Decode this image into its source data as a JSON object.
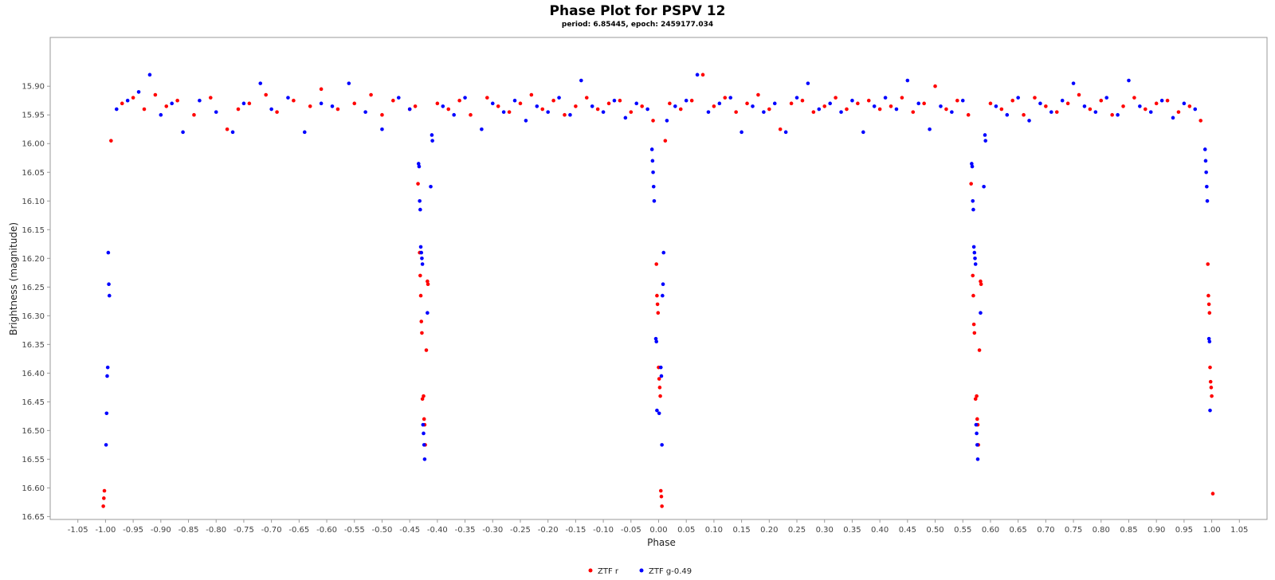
{
  "chart_data": {
    "type": "scatter",
    "title": "Phase Plot for PSPV 12",
    "subtitle": "period: 6.85445, epoch: 2459177.034",
    "xlabel": "Phase",
    "ylabel": "Brightness (magnitude)",
    "xlim": [
      -1.1,
      1.1
    ],
    "ylim": [
      16.655,
      15.815
    ],
    "y_inverted": true,
    "x_ticks": [
      "-1.05",
      "-1.00",
      "-0.95",
      "-0.90",
      "-0.85",
      "-0.80",
      "-0.75",
      "-0.70",
      "-0.65",
      "-0.60",
      "-0.55",
      "-0.50",
      "-0.45",
      "-0.40",
      "-0.35",
      "-0.30",
      "-0.25",
      "-0.20",
      "-0.15",
      "-0.10",
      "-0.05",
      "0.00",
      "0.05",
      "0.10",
      "0.15",
      "0.20",
      "0.25",
      "0.30",
      "0.35",
      "0.40",
      "0.45",
      "0.50",
      "0.55",
      "0.60",
      "0.65",
      "0.70",
      "0.75",
      "0.80",
      "0.85",
      "0.90",
      "0.95",
      "1.00",
      "1.05"
    ],
    "y_ticks": [
      "15.90",
      "15.95",
      "16.00",
      "16.05",
      "16.10",
      "16.15",
      "16.20",
      "16.25",
      "16.30",
      "16.35",
      "16.40",
      "16.45",
      "16.50",
      "16.55",
      "16.60",
      "16.65"
    ],
    "grid": false,
    "legend_position": "bottom-center",
    "series": [
      {
        "name": "ZTF r",
        "color": "#ff0000",
        "points": [
          [
            -1.002,
            16.605
          ],
          [
            -1.003,
            16.618
          ],
          [
            -1.004,
            16.632
          ],
          [
            -0.99,
            15.995
          ],
          [
            -0.97,
            15.93
          ],
          [
            -0.95,
            15.92
          ],
          [
            -0.93,
            15.94
          ],
          [
            -0.91,
            15.915
          ],
          [
            -0.89,
            15.935
          ],
          [
            -0.87,
            15.925
          ],
          [
            -0.84,
            15.95
          ],
          [
            -0.81,
            15.92
          ],
          [
            -0.78,
            15.975
          ],
          [
            -0.76,
            15.94
          ],
          [
            -0.74,
            15.93
          ],
          [
            -0.71,
            15.915
          ],
          [
            -0.69,
            15.945
          ],
          [
            -0.66,
            15.925
          ],
          [
            -0.63,
            15.935
          ],
          [
            -0.61,
            15.905
          ],
          [
            -0.58,
            15.94
          ],
          [
            -0.55,
            15.93
          ],
          [
            -0.52,
            15.915
          ],
          [
            -0.5,
            15.95
          ],
          [
            -0.48,
            15.925
          ],
          [
            -0.45,
            15.94
          ],
          [
            -0.44,
            15.935
          ],
          [
            -0.435,
            16.07
          ],
          [
            -0.432,
            16.19
          ],
          [
            -0.431,
            16.23
          ],
          [
            -0.43,
            16.265
          ],
          [
            -0.429,
            16.31
          ],
          [
            -0.428,
            16.33
          ],
          [
            -0.427,
            16.445
          ],
          [
            -0.425,
            16.44
          ],
          [
            -0.424,
            16.48
          ],
          [
            -0.423,
            16.49
          ],
          [
            -0.422,
            16.525
          ],
          [
            -0.42,
            16.36
          ],
          [
            -0.418,
            16.24
          ],
          [
            -0.417,
            16.245
          ],
          [
            -0.4,
            15.93
          ],
          [
            -0.38,
            15.94
          ],
          [
            -0.36,
            15.925
          ],
          [
            -0.34,
            15.95
          ],
          [
            -0.31,
            15.92
          ],
          [
            -0.29,
            15.935
          ],
          [
            -0.27,
            15.945
          ],
          [
            -0.25,
            15.93
          ],
          [
            -0.23,
            15.915
          ],
          [
            -0.21,
            15.94
          ],
          [
            -0.19,
            15.925
          ],
          [
            -0.17,
            15.95
          ],
          [
            -0.15,
            15.935
          ],
          [
            -0.13,
            15.92
          ],
          [
            -0.11,
            15.94
          ],
          [
            -0.09,
            15.93
          ],
          [
            -0.07,
            15.925
          ],
          [
            -0.05,
            15.945
          ],
          [
            -0.03,
            15.935
          ],
          [
            -0.01,
            15.96
          ],
          [
            -0.004,
            16.21
          ],
          [
            -0.003,
            16.265
          ],
          [
            -0.002,
            16.28
          ],
          [
            -0.001,
            16.295
          ],
          [
            0.0,
            16.39
          ],
          [
            0.001,
            16.41
          ],
          [
            0.002,
            16.425
          ],
          [
            0.003,
            16.44
          ],
          [
            0.004,
            16.605
          ],
          [
            0.005,
            16.615
          ],
          [
            0.006,
            16.632
          ],
          [
            0.012,
            15.995
          ],
          [
            0.02,
            15.93
          ],
          [
            0.04,
            15.94
          ],
          [
            0.06,
            15.925
          ],
          [
            0.08,
            15.88
          ],
          [
            0.1,
            15.935
          ],
          [
            0.12,
            15.92
          ],
          [
            0.14,
            15.945
          ],
          [
            0.16,
            15.93
          ],
          [
            0.18,
            15.915
          ],
          [
            0.2,
            15.94
          ],
          [
            0.22,
            15.975
          ],
          [
            0.24,
            15.93
          ],
          [
            0.26,
            15.925
          ],
          [
            0.28,
            15.945
          ],
          [
            0.3,
            15.935
          ],
          [
            0.32,
            15.92
          ],
          [
            0.34,
            15.94
          ],
          [
            0.36,
            15.93
          ],
          [
            0.38,
            15.925
          ],
          [
            0.4,
            15.94
          ],
          [
            0.42,
            15.935
          ],
          [
            0.44,
            15.92
          ],
          [
            0.46,
            15.945
          ],
          [
            0.48,
            15.93
          ],
          [
            0.5,
            15.9
          ],
          [
            0.52,
            15.94
          ],
          [
            0.54,
            15.925
          ],
          [
            0.56,
            15.95
          ],
          [
            0.565,
            16.07
          ],
          [
            0.568,
            16.23
          ],
          [
            0.569,
            16.265
          ],
          [
            0.57,
            16.315
          ],
          [
            0.571,
            16.33
          ],
          [
            0.573,
            16.445
          ],
          [
            0.575,
            16.44
          ],
          [
            0.576,
            16.48
          ],
          [
            0.577,
            16.49
          ],
          [
            0.578,
            16.525
          ],
          [
            0.58,
            16.36
          ],
          [
            0.582,
            16.24
          ],
          [
            0.583,
            16.245
          ],
          [
            0.6,
            15.93
          ],
          [
            0.62,
            15.94
          ],
          [
            0.64,
            15.925
          ],
          [
            0.66,
            15.95
          ],
          [
            0.68,
            15.92
          ],
          [
            0.7,
            15.935
          ],
          [
            0.72,
            15.945
          ],
          [
            0.74,
            15.93
          ],
          [
            0.76,
            15.915
          ],
          [
            0.78,
            15.94
          ],
          [
            0.8,
            15.925
          ],
          [
            0.82,
            15.95
          ],
          [
            0.84,
            15.935
          ],
          [
            0.86,
            15.92
          ],
          [
            0.88,
            15.94
          ],
          [
            0.9,
            15.93
          ],
          [
            0.92,
            15.925
          ],
          [
            0.94,
            15.945
          ],
          [
            0.96,
            15.935
          ],
          [
            0.98,
            15.96
          ],
          [
            0.993,
            16.21
          ],
          [
            0.994,
            16.265
          ],
          [
            0.995,
            16.28
          ],
          [
            0.996,
            16.295
          ],
          [
            0.997,
            16.39
          ],
          [
            0.998,
            16.415
          ],
          [
            0.999,
            16.425
          ],
          [
            1.0,
            16.44
          ],
          [
            1.002,
            16.61
          ]
        ]
      },
      {
        "name": "ZTF g-0.49",
        "color": "#0000ff",
        "points": [
          [
            -0.995,
            16.19
          ],
          [
            -0.994,
            16.245
          ],
          [
            -0.993,
            16.265
          ],
          [
            -0.996,
            16.39
          ],
          [
            -0.997,
            16.405
          ],
          [
            -0.998,
            16.47
          ],
          [
            -0.999,
            16.525
          ],
          [
            -0.98,
            15.94
          ],
          [
            -0.96,
            15.925
          ],
          [
            -0.94,
            15.91
          ],
          [
            -0.92,
            15.88
          ],
          [
            -0.9,
            15.95
          ],
          [
            -0.88,
            15.93
          ],
          [
            -0.86,
            15.98
          ],
          [
            -0.83,
            15.925
          ],
          [
            -0.8,
            15.945
          ],
          [
            -0.77,
            15.98
          ],
          [
            -0.75,
            15.93
          ],
          [
            -0.72,
            15.895
          ],
          [
            -0.7,
            15.94
          ],
          [
            -0.67,
            15.92
          ],
          [
            -0.64,
            15.98
          ],
          [
            -0.61,
            15.93
          ],
          [
            -0.59,
            15.935
          ],
          [
            -0.56,
            15.895
          ],
          [
            -0.53,
            15.945
          ],
          [
            -0.5,
            15.975
          ],
          [
            -0.47,
            15.92
          ],
          [
            -0.45,
            15.94
          ],
          [
            -0.434,
            16.035
          ],
          [
            -0.433,
            16.04
          ],
          [
            -0.432,
            16.1
          ],
          [
            -0.431,
            16.115
          ],
          [
            -0.43,
            16.18
          ],
          [
            -0.429,
            16.19
          ],
          [
            -0.428,
            16.2
          ],
          [
            -0.427,
            16.21
          ],
          [
            -0.426,
            16.49
          ],
          [
            -0.425,
            16.505
          ],
          [
            -0.424,
            16.525
          ],
          [
            -0.423,
            16.55
          ],
          [
            -0.418,
            16.295
          ],
          [
            -0.412,
            16.075
          ],
          [
            -0.41,
            15.985
          ],
          [
            -0.409,
            15.995
          ],
          [
            -0.39,
            15.935
          ],
          [
            -0.37,
            15.95
          ],
          [
            -0.35,
            15.92
          ],
          [
            -0.32,
            15.975
          ],
          [
            -0.3,
            15.93
          ],
          [
            -0.28,
            15.945
          ],
          [
            -0.26,
            15.925
          ],
          [
            -0.24,
            15.96
          ],
          [
            -0.22,
            15.935
          ],
          [
            -0.2,
            15.945
          ],
          [
            -0.18,
            15.92
          ],
          [
            -0.16,
            15.95
          ],
          [
            -0.14,
            15.89
          ],
          [
            -0.12,
            15.935
          ],
          [
            -0.1,
            15.945
          ],
          [
            -0.08,
            15.925
          ],
          [
            -0.06,
            15.955
          ],
          [
            -0.04,
            15.93
          ],
          [
            -0.02,
            15.94
          ],
          [
            -0.012,
            16.01
          ],
          [
            -0.011,
            16.03
          ],
          [
            -0.01,
            16.05
          ],
          [
            -0.009,
            16.075
          ],
          [
            -0.008,
            16.1
          ],
          [
            -0.005,
            16.34
          ],
          [
            -0.004,
            16.345
          ],
          [
            -0.003,
            16.465
          ],
          [
            0.001,
            16.47
          ],
          [
            0.004,
            16.39
          ],
          [
            0.005,
            16.405
          ],
          [
            0.006,
            16.525
          ],
          [
            0.007,
            16.265
          ],
          [
            0.008,
            16.245
          ],
          [
            0.009,
            16.19
          ],
          [
            0.015,
            15.96
          ],
          [
            0.03,
            15.935
          ],
          [
            0.05,
            15.925
          ],
          [
            0.07,
            15.88
          ],
          [
            0.09,
            15.945
          ],
          [
            0.11,
            15.93
          ],
          [
            0.13,
            15.92
          ],
          [
            0.15,
            15.98
          ],
          [
            0.17,
            15.935
          ],
          [
            0.19,
            15.945
          ],
          [
            0.21,
            15.93
          ],
          [
            0.23,
            15.98
          ],
          [
            0.25,
            15.92
          ],
          [
            0.27,
            15.895
          ],
          [
            0.29,
            15.94
          ],
          [
            0.31,
            15.93
          ],
          [
            0.33,
            15.945
          ],
          [
            0.35,
            15.925
          ],
          [
            0.37,
            15.98
          ],
          [
            0.39,
            15.935
          ],
          [
            0.41,
            15.92
          ],
          [
            0.43,
            15.94
          ],
          [
            0.45,
            15.89
          ],
          [
            0.47,
            15.93
          ],
          [
            0.49,
            15.975
          ],
          [
            0.51,
            15.935
          ],
          [
            0.53,
            15.945
          ],
          [
            0.55,
            15.925
          ],
          [
            0.566,
            16.035
          ],
          [
            0.567,
            16.04
          ],
          [
            0.568,
            16.1
          ],
          [
            0.569,
            16.115
          ],
          [
            0.57,
            16.18
          ],
          [
            0.571,
            16.19
          ],
          [
            0.572,
            16.2
          ],
          [
            0.573,
            16.21
          ],
          [
            0.574,
            16.49
          ],
          [
            0.575,
            16.505
          ],
          [
            0.576,
            16.525
          ],
          [
            0.577,
            16.55
          ],
          [
            0.582,
            16.295
          ],
          [
            0.588,
            16.075
          ],
          [
            0.59,
            15.985
          ],
          [
            0.591,
            15.995
          ],
          [
            0.61,
            15.935
          ],
          [
            0.63,
            15.95
          ],
          [
            0.65,
            15.92
          ],
          [
            0.67,
            15.96
          ],
          [
            0.69,
            15.93
          ],
          [
            0.71,
            15.945
          ],
          [
            0.73,
            15.925
          ],
          [
            0.75,
            15.895
          ],
          [
            0.77,
            15.935
          ],
          [
            0.79,
            15.945
          ],
          [
            0.81,
            15.92
          ],
          [
            0.83,
            15.95
          ],
          [
            0.85,
            15.89
          ],
          [
            0.87,
            15.935
          ],
          [
            0.89,
            15.945
          ],
          [
            0.91,
            15.925
          ],
          [
            0.93,
            15.955
          ],
          [
            0.95,
            15.93
          ],
          [
            0.97,
            15.94
          ],
          [
            0.988,
            16.01
          ],
          [
            0.989,
            16.03
          ],
          [
            0.99,
            16.05
          ],
          [
            0.991,
            16.075
          ],
          [
            0.992,
            16.1
          ],
          [
            0.995,
            16.34
          ],
          [
            0.996,
            16.345
          ],
          [
            0.997,
            16.465
          ]
        ]
      }
    ]
  }
}
